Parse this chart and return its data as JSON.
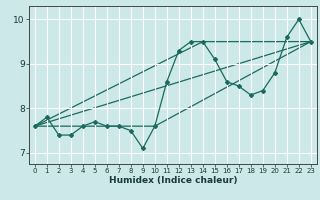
{
  "xlabel": "Humidex (Indice chaleur)",
  "bg_color": "#cce8e8",
  "grid_color": "#ffffff",
  "line_color": "#1a6b5e",
  "xlim": [
    -0.5,
    23.5
  ],
  "ylim": [
    6.75,
    10.3
  ],
  "xticks": [
    0,
    1,
    2,
    3,
    4,
    5,
    6,
    7,
    8,
    9,
    10,
    11,
    12,
    13,
    14,
    15,
    16,
    17,
    18,
    19,
    20,
    21,
    22,
    23
  ],
  "yticks": [
    7,
    8,
    9,
    10
  ],
  "series1_x": [
    0,
    1,
    2,
    3,
    4,
    5,
    6,
    7,
    8,
    9,
    10,
    11,
    12,
    13,
    14,
    15,
    16,
    17,
    18,
    19,
    20,
    21,
    22,
    23
  ],
  "series1_y": [
    7.6,
    7.8,
    7.4,
    7.4,
    7.6,
    7.7,
    7.6,
    7.6,
    7.5,
    7.1,
    7.6,
    8.6,
    9.3,
    9.5,
    9.5,
    9.1,
    8.6,
    8.5,
    8.3,
    8.4,
    8.8,
    9.6,
    10.0,
    9.5
  ],
  "line1_x": [
    0,
    23
  ],
  "line1_y": [
    7.6,
    9.5
  ],
  "line2_x": [
    0,
    14,
    23
  ],
  "line2_y": [
    7.6,
    9.5,
    9.5
  ],
  "line3_x": [
    0,
    10,
    23
  ],
  "line3_y": [
    7.6,
    7.6,
    9.5
  ]
}
